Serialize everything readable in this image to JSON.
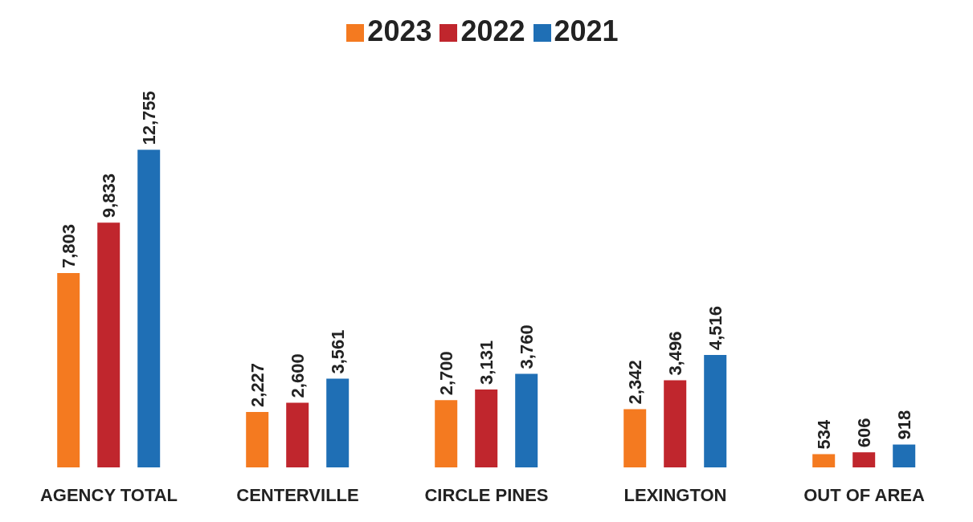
{
  "chart_data": {
    "type": "bar",
    "categories": [
      "AGENCY TOTAL",
      "CENTERVILLE",
      "CIRCLE PINES",
      "LEXINGTON",
      "OUT OF AREA"
    ],
    "series": [
      {
        "name": "2023",
        "color": "#f47a20",
        "values": [
          7803,
          2227,
          2700,
          2342,
          534
        ],
        "value_labels": [
          "7,803",
          "2,227",
          "2,700",
          "2,342",
          "534"
        ]
      },
      {
        "name": "2022",
        "color": "#c0262d",
        "values": [
          9833,
          2600,
          3131,
          3496,
          606
        ],
        "value_labels": [
          "9,833",
          "2,600",
          "3,131",
          "3,496",
          "606"
        ]
      },
      {
        "name": "2021",
        "color": "#1f6fb5",
        "values": [
          12755,
          3561,
          3760,
          4516,
          918
        ],
        "value_labels": [
          "12,755",
          "3,561",
          "3,760",
          "4,516",
          "918"
        ]
      }
    ],
    "legend": "top",
    "grid": false
  }
}
